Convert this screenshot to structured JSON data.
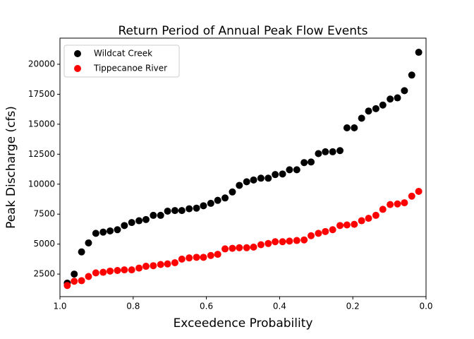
{
  "chart_data": {
    "type": "scatter",
    "title": "Return Period of Annual Peak Flow Events",
    "x_label": "Exceedence Probability",
    "y_label": "Peak Discharge (cfs)",
    "legend": "upper left",
    "x": [
      0.98,
      0.961,
      0.941,
      0.922,
      0.902,
      0.882,
      0.863,
      0.843,
      0.824,
      0.804,
      0.784,
      0.765,
      0.745,
      0.725,
      0.706,
      0.686,
      0.667,
      0.647,
      0.627,
      0.608,
      0.588,
      0.569,
      0.549,
      0.529,
      0.51,
      0.49,
      0.471,
      0.451,
      0.431,
      0.412,
      0.392,
      0.373,
      0.353,
      0.333,
      0.314,
      0.294,
      0.275,
      0.255,
      0.235,
      0.216,
      0.196,
      0.176,
      0.157,
      0.137,
      0.118,
      0.098,
      0.078,
      0.059,
      0.039,
      0.02
    ],
    "series": [
      {
        "name": "Wildcat Creek",
        "color": "#000000",
        "values": [
          1750,
          2500,
          4350,
          5100,
          5900,
          6000,
          6100,
          6200,
          6550,
          6800,
          6950,
          7050,
          7400,
          7400,
          7750,
          7800,
          7800,
          7950,
          8000,
          8200,
          8400,
          8650,
          8850,
          9350,
          9900,
          10200,
          10350,
          10500,
          10500,
          10800,
          10850,
          11200,
          11200,
          11800,
          11850,
          12550,
          12700,
          12700,
          12800,
          14700,
          14700,
          15500,
          16100,
          16300,
          16600,
          17100,
          17200,
          17800,
          19100,
          21000
        ]
      },
      {
        "name": "Tippecanoe River",
        "color": "#ff0000",
        "values": [
          1550,
          1900,
          1950,
          2300,
          2600,
          2650,
          2750,
          2800,
          2850,
          2850,
          3000,
          3150,
          3200,
          3300,
          3350,
          3450,
          3750,
          3850,
          3900,
          3900,
          4050,
          4150,
          4600,
          4650,
          4700,
          4700,
          4750,
          4950,
          5050,
          5200,
          5200,
          5250,
          5300,
          5350,
          5700,
          5900,
          6050,
          6200,
          6550,
          6600,
          6650,
          6950,
          7150,
          7400,
          7900,
          8300,
          8350,
          8450,
          9000,
          9400
        ]
      }
    ],
    "xlim": [
      1.0,
      0.0
    ],
    "xticks": [
      {
        "value": 1.0,
        "label": "1.0"
      },
      0.8,
      0.6,
      0.4,
      0.2,
      {
        "value": 0.0,
        "label": "0.0"
      }
    ],
    "ylim": [
      620,
      22180
    ],
    "yticks": [
      2500,
      5000,
      7500,
      10000,
      12500,
      15000,
      17500,
      20000
    ]
  }
}
